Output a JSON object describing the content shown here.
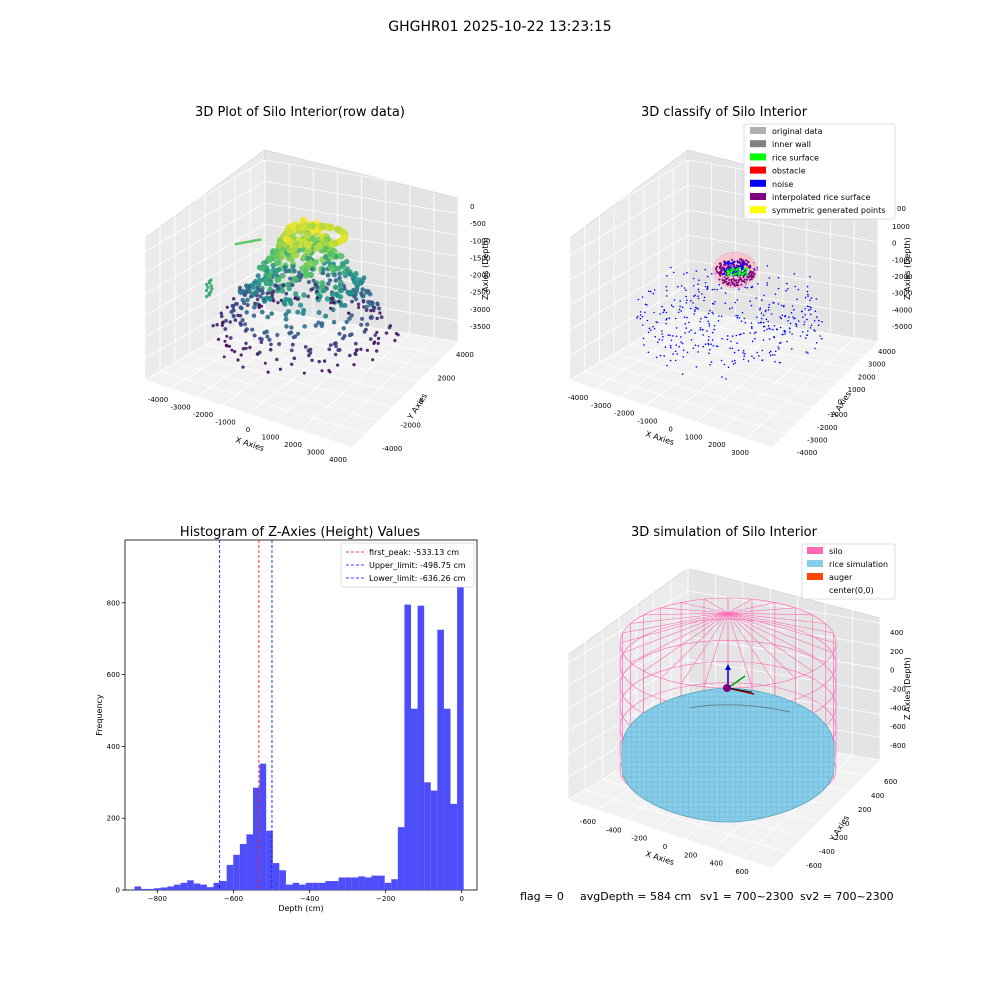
{
  "suptitle": "GHGHR01 2025-10-22 13:23:15",
  "chart_data": [
    {
      "type": "scatter",
      "title": "3D Plot of Silo Interior(row data)",
      "xlabel": "X Axies",
      "ylabel": "Y Axies",
      "zlabel": "Z Axies (Depth)",
      "xticks": [
        "-4000",
        "-3000",
        "-2000",
        "-1000",
        "0",
        "1000",
        "2000",
        "3000",
        "4000"
      ],
      "yticks": [
        "-4000",
        "-2000",
        "0",
        "2000",
        "4000"
      ],
      "zticks": [
        "0",
        "-500",
        "-1000",
        "-1500",
        "-2000",
        "-2500",
        "-3000",
        "-3500"
      ],
      "colormap": [
        "#440154",
        "#3b528b",
        "#21918c",
        "#5ec962",
        "#fde725"
      ],
      "zlim": [
        -3800,
        0
      ]
    },
    {
      "type": "scatter",
      "title": "3D classify of Silo Interior",
      "xlabel": "X Axies",
      "ylabel": "Y Axies",
      "zlabel": "Z Axies (Depth)",
      "xticks": [
        "-4000",
        "-3000",
        "-2000",
        "-1000",
        "0",
        "1000",
        "2000",
        "3000"
      ],
      "yticks": [
        "-4000",
        "-3000",
        "-2000",
        "-1000",
        "0",
        "1000",
        "2000",
        "3000",
        "4000"
      ],
      "zticks": [
        "1000",
        "0",
        "-1000",
        "-2000",
        "-3000",
        "-4000",
        "-5000"
      ],
      "legend": [
        {
          "label": "original data",
          "color": "#b0b0b0"
        },
        {
          "label": "inner wall",
          "color": "#808080"
        },
        {
          "label": "rice surface",
          "color": "#00ff00"
        },
        {
          "label": "obstacle",
          "color": "#ff0000"
        },
        {
          "label": "noise",
          "color": "#0000ff"
        },
        {
          "label": "interpolated rice surface",
          "color": "#800080"
        },
        {
          "label": "symmetric generated points",
          "color": "#ffff00"
        }
      ],
      "legend_partial_tick": "00"
    },
    {
      "type": "bar",
      "title": "Histogram of Z-Axies (Height) Values",
      "xlabel": "Depth (cm)",
      "ylabel": "Frequency",
      "bar_color": "#4d4dfa",
      "xlim": [
        -885,
        40
      ],
      "ylim": [
        0,
        975
      ],
      "xticks": [
        -800,
        -600,
        -400,
        -200,
        0
      ],
      "yticks": [
        0,
        200,
        400,
        600,
        800
      ],
      "bin_width": 17.3,
      "bin_start": -860,
      "values": [
        10,
        3,
        3,
        5,
        7,
        10,
        15,
        20,
        27,
        18,
        15,
        8,
        20,
        25,
        70,
        98,
        128,
        155,
        285,
        352,
        165,
        75,
        55,
        15,
        20,
        15,
        20,
        20,
        20,
        25,
        25,
        35,
        35,
        35,
        38,
        35,
        40,
        40,
        20,
        30,
        175,
        795,
        505,
        792,
        300,
        277,
        725,
        505,
        240,
        930
      ],
      "vlines": [
        {
          "label": "first_peak: -533.13 cm",
          "x": -533.13,
          "color": "#ff0000"
        },
        {
          "label": "Upper_limit: -498.75 cm",
          "x": -498.75,
          "color": "#0000ff"
        },
        {
          "label": "Lower_limit: -636.26 cm",
          "x": -636.26,
          "color": "#0000ff"
        }
      ]
    },
    {
      "type": "scatter",
      "title": "3D simulation of Silo Interior",
      "xlabel": "X Axies",
      "ylabel": "Y Axies",
      "zlabel": "Z Axies (Depth)",
      "xticks": [
        "-600",
        "-400",
        "-200",
        "0",
        "200",
        "400",
        "600"
      ],
      "yticks": [
        "-600",
        "-400",
        "-200",
        "0",
        "200",
        "400",
        "600"
      ],
      "zticks": [
        "400",
        "200",
        "0",
        "-200",
        "-400",
        "-600",
        "-800"
      ],
      "legend": [
        {
          "label": "silo",
          "color": "#ff69b4"
        },
        {
          "label": "rice simulation",
          "color": "#87ceeb"
        },
        {
          "label": "auger",
          "color": "#ff4500"
        },
        {
          "label": "center(0,0)",
          "color": "none"
        }
      ]
    }
  ],
  "footer": {
    "flag": "flag = 0",
    "avg_depth": "avgDepth = 584 cm",
    "sv1": "sv1 = 700~2300",
    "sv2": "sv2 = 700~2300"
  }
}
